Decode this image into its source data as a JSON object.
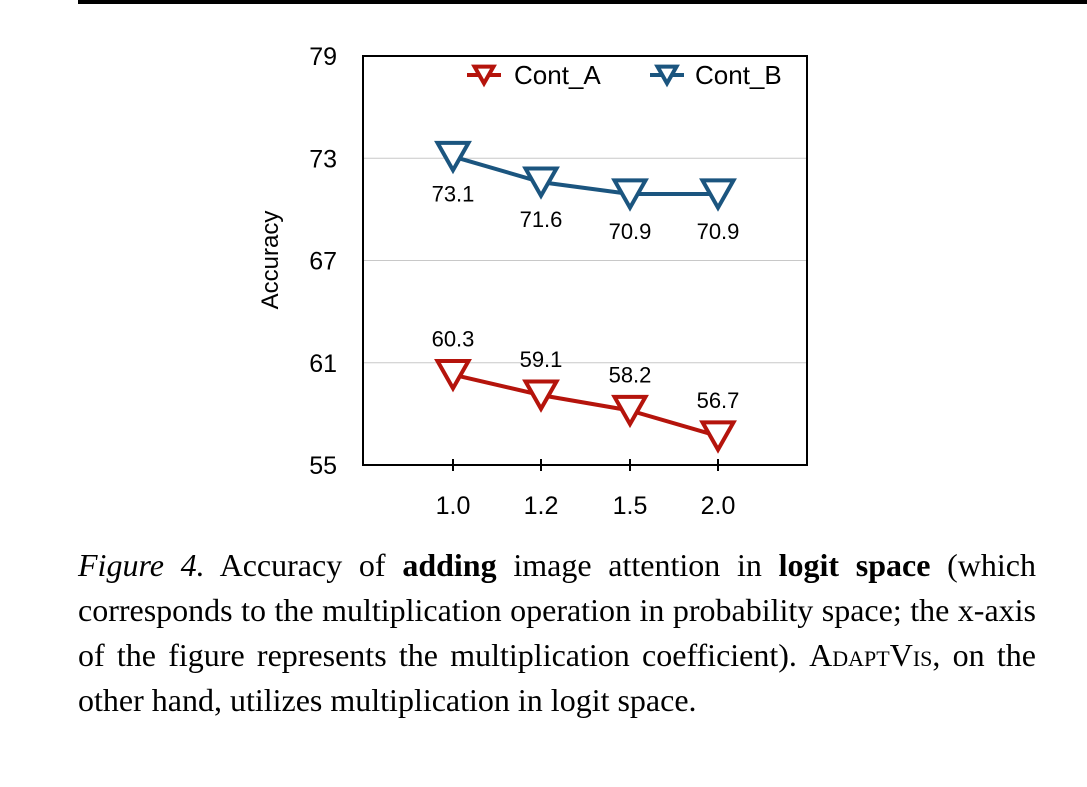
{
  "chart_data": {
    "type": "line",
    "x": [
      "1.0",
      "1.2",
      "1.5",
      "2.0"
    ],
    "series": [
      {
        "name": "Cont_A",
        "color": "#b5140c",
        "values": [
          60.3,
          59.1,
          58.2,
          56.7
        ],
        "labels": [
          "60.3",
          "59.1",
          "58.2",
          "56.7"
        ]
      },
      {
        "name": "Cont_B",
        "color": "#1b557f",
        "values": [
          73.1,
          71.6,
          70.9,
          70.9
        ],
        "labels": [
          "73.1",
          "71.6",
          "70.9",
          "70.9"
        ]
      }
    ],
    "ylabel": "Accuracy",
    "ylim": [
      55,
      79
    ],
    "yticks": [
      "55",
      "61",
      "67",
      "73",
      "79"
    ],
    "grid": "horizontal",
    "legend": "top-right",
    "marker": "inverted-triangle"
  },
  "caption": {
    "label": "Figure 4.",
    "t1": " Accuracy of ",
    "b1": "adding",
    "t2": " image attention in ",
    "b2": "logit space",
    "t3": " (which corresponds to the multiplication operation in probability space; the x-axis of the figure represents the multiplication coefficient). ",
    "method": "AdaptVis",
    "t4": ", on the other hand, utilizes multiplication in logit space."
  }
}
